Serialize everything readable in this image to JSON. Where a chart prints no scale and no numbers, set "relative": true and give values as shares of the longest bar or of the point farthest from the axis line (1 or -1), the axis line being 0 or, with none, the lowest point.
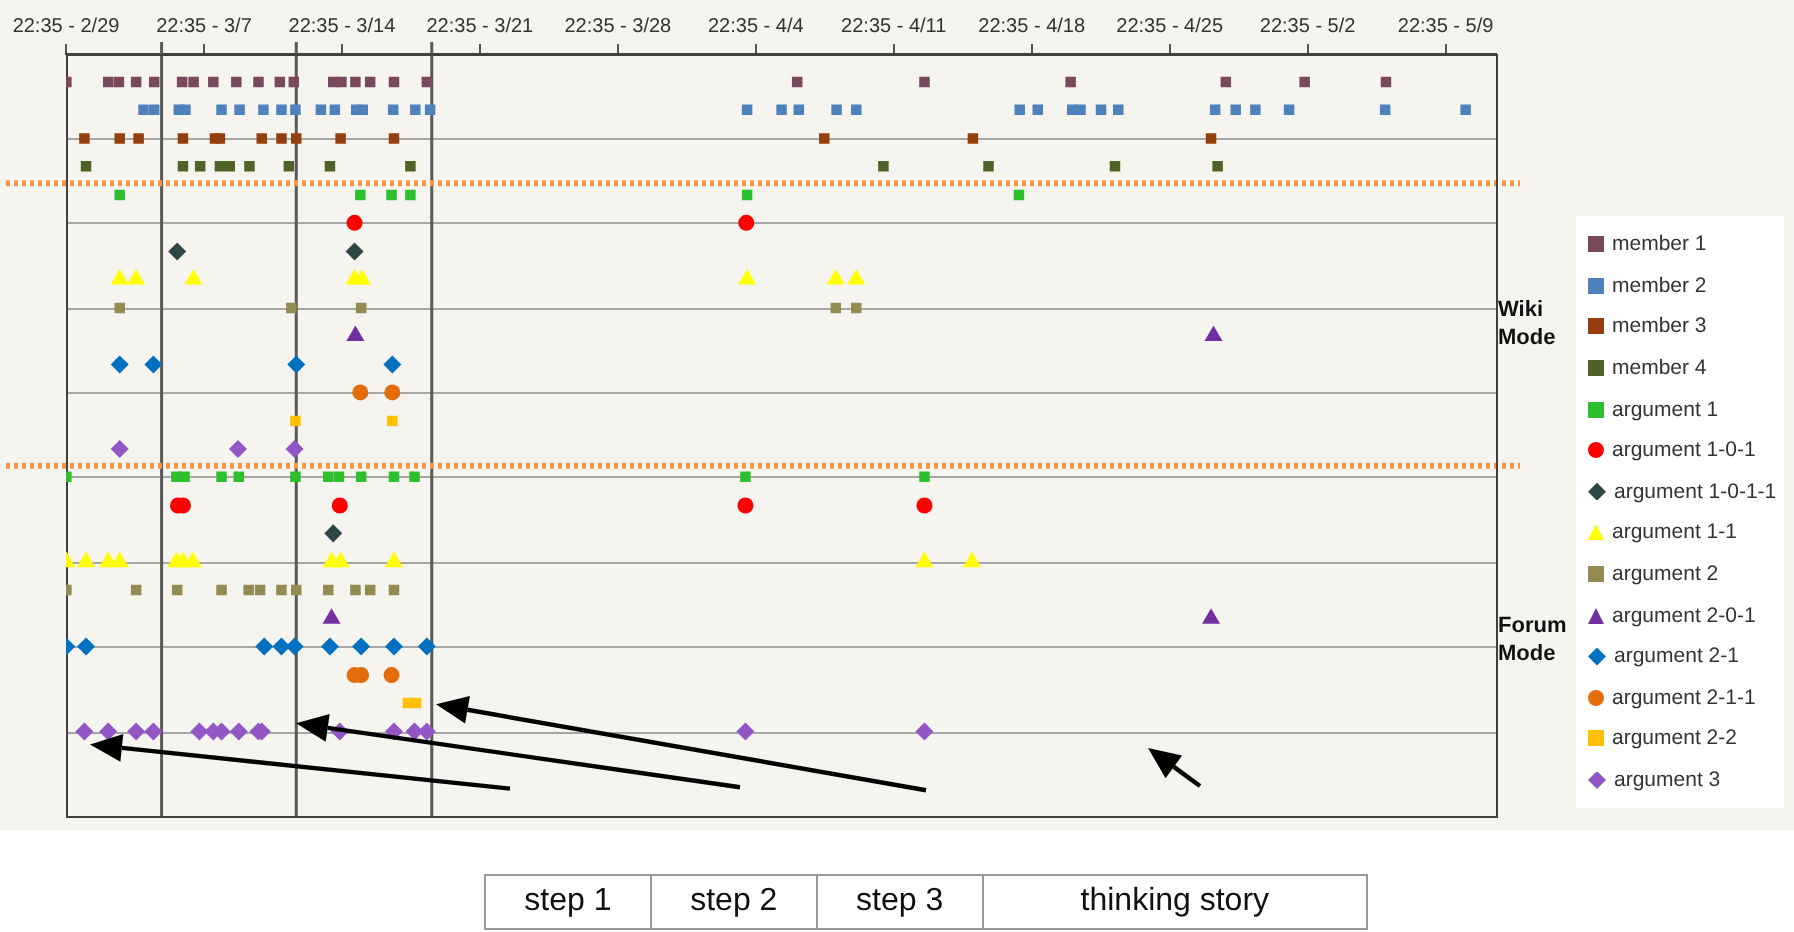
{
  "chart_data": {
    "type": "scatter",
    "relative": true,
    "grid": "y",
    "legend": "right",
    "xlim": [
      "--02-29T22:35",
      "--05-12T12:00"
    ],
    "xticks": [
      {
        "value": "--02-29T22:35",
        "label": "22:35 - 2/29"
      },
      {
        "value": "--03-07T22:35",
        "label": "22:35 - 3/7"
      },
      {
        "value": "--03-14T22:35",
        "label": "22:35 - 3/14"
      },
      {
        "value": "--03-21T22:35",
        "label": "22:35 - 3/21"
      },
      {
        "value": "--03-28T22:35",
        "label": "22:35 - 3/28"
      },
      {
        "value": "--04-04T22:35",
        "label": "22:35 - 4/4"
      },
      {
        "value": "--04-11T22:35",
        "label": "22:35 - 4/11"
      },
      {
        "value": "--04-18T22:35",
        "label": "22:35 - 4/18"
      },
      {
        "value": "--04-25T22:35",
        "label": "22:35 - 4/25"
      },
      {
        "value": "--05-02T22:35",
        "label": "22:35 - 5/2"
      },
      {
        "value": "--05-09T22:35",
        "label": "22:35 - 5/9"
      }
    ],
    "series": [
      {
        "name": "member 1",
        "color": "#7a4a5c",
        "marker": "square",
        "x": [
          "--02-29T23:00",
          "--03-03T02:00",
          "--03-03T15:00",
          "--03-04T12:00",
          "--03-05T10:00",
          "--03-06T20:00",
          "--03-07T10:00",
          "--03-08T10:00",
          "--03-09T14:00",
          "--03-10T17:00",
          "--03-11T19:00",
          "--03-12T12:00",
          "--03-14T12:00",
          "--03-14T22:00",
          "--03-15T15:00",
          "--03-16T09:00",
          "--03-17T14:00",
          "--03-19T06:00",
          "--04-07T01:00",
          "--04-13T12:00",
          "--04-20T22:00",
          "--04-28T19:00",
          "--05-02T19:00",
          "--05-06T22:00"
        ],
        "values": [
          1,
          1,
          1,
          1,
          1,
          1,
          1,
          1,
          1,
          1,
          1,
          1,
          1,
          1,
          1,
          1,
          1,
          1,
          1,
          1,
          1,
          1,
          1,
          1
        ]
      },
      {
        "name": "member 2",
        "color": "#4f81bd",
        "marker": "square",
        "x": [
          "--03-04T21:00",
          "--03-05T10:00",
          "--03-06T16:00",
          "--03-07T00:00",
          "--03-08T20:00",
          "--03-09T18:00",
          "--03-10T23:00",
          "--03-11T21:00",
          "--03-12T14:00",
          "--03-13T21:00",
          "--03-14T14:00",
          "--03-15T16:00",
          "--03-16T00:00",
          "--03-17T13:00",
          "--03-18T16:00",
          "--03-19T10:00",
          "--04-04T12:00",
          "--04-06T06:00",
          "--04-07T03:00",
          "--04-09T01:00",
          "--04-10T01:00",
          "--04-18T08:00",
          "--04-19T06:00",
          "--04-21T00:00",
          "--04-21T10:00",
          "--04-22T11:00",
          "--04-23T08:00",
          "--04-28T06:00",
          "--04-29T07:00",
          "--04-30T07:00",
          "--05-02T00:00",
          "--05-06T21:00",
          "--05-10T23:00"
        ],
        "values": [
          0.962,
          0.962,
          0.962,
          0.962,
          0.962,
          0.962,
          0.962,
          0.962,
          0.962,
          0.962,
          0.962,
          0.962,
          0.962,
          0.962,
          0.962,
          0.962,
          0.962,
          0.962,
          0.962,
          0.962,
          0.962,
          0.962,
          0.962,
          0.962,
          0.962,
          0.962,
          0.962,
          0.962,
          0.962,
          0.962,
          0.962,
          0.962,
          0.962
        ]
      },
      {
        "name": "member 3",
        "color": "#953f0f",
        "marker": "square",
        "x": [
          "--03-01T21:00",
          "--03-03T16:00",
          "--03-04T15:00",
          "--03-06T21:00",
          "--03-08T12:00",
          "--03-08T18:00",
          "--03-10T21:00",
          "--03-11T21:00",
          "--03-12T15:00",
          "--03-14T21:00",
          "--03-17T14:00",
          "--04-08T10:00",
          "--04-15T23:00",
          "--04-28T01:00"
        ],
        "values": [
          0.923,
          0.923,
          0.923,
          0.923,
          0.923,
          0.923,
          0.923,
          0.923,
          0.923,
          0.923,
          0.923,
          0.923,
          0.923,
          0.923
        ]
      },
      {
        "name": "member 4",
        "color": "#4f6228",
        "marker": "square",
        "x": [
          "--03-01T23:00",
          "--03-06T21:00",
          "--03-07T18:00",
          "--03-08T18:00",
          "--03-09T06:00",
          "--03-10T06:00",
          "--03-12T06:00",
          "--03-14T08:00",
          "--03-18T10:00",
          "--04-11T10:00",
          "--04-16T18:00",
          "--04-23T04:00",
          "--04-28T09:00"
        ],
        "values": [
          0.885,
          0.885,
          0.885,
          0.885,
          0.885,
          0.885,
          0.885,
          0.885,
          0.885,
          0.885,
          0.885,
          0.885,
          0.885
        ]
      },
      {
        "name": "argument 1",
        "color": "#2dbf2d",
        "marker": "square",
        "x": [
          "--03-03T16:00",
          "--03-15T21:00",
          "--03-17T11:00",
          "--03-18T10:00",
          "--04-04T12:00",
          "--04-18T07:00",
          "--02-29T23:00",
          "--03-06T13:00",
          "--03-06T23:00",
          "--03-08T20:00",
          "--03-09T17:00",
          "--03-12T14:00",
          "--03-14T06:00",
          "--03-14T19:00",
          "--03-15T22:00",
          "--03-17T14:00",
          "--03-18T15:00",
          "--04-04T10:00",
          "--04-13T12:00"
        ],
        "values": [
          0.846,
          0.846,
          0.846,
          0.846,
          0.846,
          0.846,
          0.462,
          0.462,
          0.462,
          0.462,
          0.462,
          0.462,
          0.462,
          0.462,
          0.462,
          0.462,
          0.462,
          0.462,
          0.462
        ]
      },
      {
        "name": "argument 1-0-1",
        "color": "#ff0000",
        "marker": "circle",
        "x": [
          "--03-15T14:00",
          "--04-04T11:00",
          "--03-06T15:00",
          "--03-06T21:00",
          "--03-14T20:00",
          "--04-04T10:00",
          "--04-13T12:00"
        ],
        "values": [
          0.808,
          0.808,
          0.423,
          0.423,
          0.423,
          0.423,
          0.423
        ]
      },
      {
        "name": "argument 1-0-1-1",
        "color": "#2e4746",
        "marker": "diamond",
        "x": [
          "--03-06T14:00",
          "--03-15T14:00",
          "--03-14T12:00"
        ],
        "values": [
          0.769,
          0.769,
          0.385
        ]
      },
      {
        "name": "argument 1-1",
        "color": "#ffff00",
        "marker": "triangle",
        "x": [
          "--03-03T16:00",
          "--03-04T12:00",
          "--03-07T10:00",
          "--03-15T14:00",
          "--03-15T23:00",
          "--04-04T12:00",
          "--04-09T00:00",
          "--04-10T01:00",
          "--02-29T23:00",
          "--03-01T23:00",
          "--03-03T02:00",
          "--03-03T16:00",
          "--03-06T13:00",
          "--03-06T21:00",
          "--03-07T09:00",
          "--03-14T10:00",
          "--03-14T21:00",
          "--03-17T14:00",
          "--04-13T12:00",
          "--04-15T22:00"
        ],
        "values": [
          0.731,
          0.731,
          0.731,
          0.731,
          0.731,
          0.731,
          0.731,
          0.731,
          0.346,
          0.346,
          0.346,
          0.346,
          0.346,
          0.346,
          0.346,
          0.346,
          0.346,
          0.346,
          0.346,
          0.346
        ]
      },
      {
        "name": "argument 2",
        "color": "#948a54",
        "marker": "square",
        "x": [
          "--03-03T16:00",
          "--03-12T09:00",
          "--03-15T22:00",
          "--04-09T00:00",
          "--04-10T01:00",
          "--02-29T23:00",
          "--03-04T12:00",
          "--03-06T14:00",
          "--03-08T20:00",
          "--03-10T05:00",
          "--03-10T19:00",
          "--03-11T21:00",
          "--03-12T15:00",
          "--03-14T06:00",
          "--03-15T15:00",
          "--03-16T09:00",
          "--03-17T14:00"
        ],
        "values": [
          0.692,
          0.692,
          0.692,
          0.692,
          0.692,
          0.308,
          0.308,
          0.308,
          0.308,
          0.308,
          0.308,
          0.308,
          0.308,
          0.308,
          0.308,
          0.308,
          0.308
        ]
      },
      {
        "name": "argument 2-0-1",
        "color": "#7030a0",
        "marker": "triangle",
        "x": [
          "--03-15T15:00",
          "--04-28T04:00",
          "--03-14T10:00",
          "--04-28T01:00"
        ],
        "values": [
          0.654,
          0.654,
          0.269,
          0.269
        ]
      },
      {
        "name": "argument 2-1",
        "color": "#0070c0",
        "marker": "diamond",
        "x": [
          "--03-03T16:00",
          "--03-05T09:00",
          "--03-12T15:00",
          "--03-17T12:00",
          "--02-29T23:00",
          "--03-01T23:00",
          "--03-11T00:00",
          "--03-11T21:00",
          "--03-12T13:00",
          "--03-14T08:00",
          "--03-15T22:00",
          "--03-17T14:00",
          "--03-19T06:00"
        ],
        "values": [
          0.615,
          0.615,
          0.615,
          0.615,
          0.231,
          0.231,
          0.231,
          0.231,
          0.231,
          0.231,
          0.231,
          0.231,
          0.231
        ]
      },
      {
        "name": "argument 2-1-1",
        "color": "#e46c0a",
        "marker": "circle",
        "x": [
          "--03-15T21:00",
          "--03-17T12:00",
          "--03-15T14:00",
          "--03-15T22:00",
          "--03-17T11:00"
        ],
        "values": [
          0.577,
          0.577,
          0.192,
          0.192,
          0.192
        ]
      },
      {
        "name": "argument 2-2",
        "color": "#ffc000",
        "marker": "square",
        "x": [
          "--03-12T14:00",
          "--03-17T12:00",
          "--03-18T07:00",
          "--03-18T17:00"
        ],
        "values": [
          0.538,
          0.538,
          0.154,
          0.154
        ]
      },
      {
        "name": "argument 3",
        "color": "#9257c4",
        "marker": "diamond",
        "x": [
          "--03-03T16:00",
          "--03-09T16:00",
          "--03-12T13:00",
          "--03-01T21:00",
          "--03-03T02:00",
          "--03-04T12:00",
          "--03-05T09:00",
          "--03-07T17:00",
          "--03-08T10:00",
          "--03-08T20:00",
          "--03-09T17:00",
          "--03-10T17:00",
          "--03-10T21:00",
          "--03-14T20:00",
          "--03-17T14:00",
          "--03-18T15:00",
          "--03-19T06:00",
          "--04-04T10:00",
          "--04-13T12:00"
        ],
        "values": [
          0.5,
          0.5,
          0.5,
          0.115,
          0.115,
          0.115,
          0.115,
          0.115,
          0.115,
          0.115,
          0.115,
          0.115,
          0.115,
          0.115,
          0.115,
          0.115,
          0.115,
          0.115,
          0.115
        ]
      }
    ],
    "ref_lines": [
      {
        "axis": "x",
        "value": "--03-05T19:00",
        "color": "#595959"
      },
      {
        "axis": "x",
        "value": "--03-12T15:00",
        "color": "#595959"
      },
      {
        "axis": "x",
        "value": "--03-19T12:00",
        "color": "#595959"
      },
      {
        "axis": "y",
        "value": 0.862,
        "color": "#f79646",
        "line_style": "dotted"
      },
      {
        "axis": "y",
        "value": 0.477,
        "color": "#f79646",
        "line_style": "dotted"
      }
    ],
    "annotations": [
      "Wiki Mode",
      "Forum Mode",
      "step 1",
      "step 2",
      "step 3",
      "thinking story"
    ]
  }
}
